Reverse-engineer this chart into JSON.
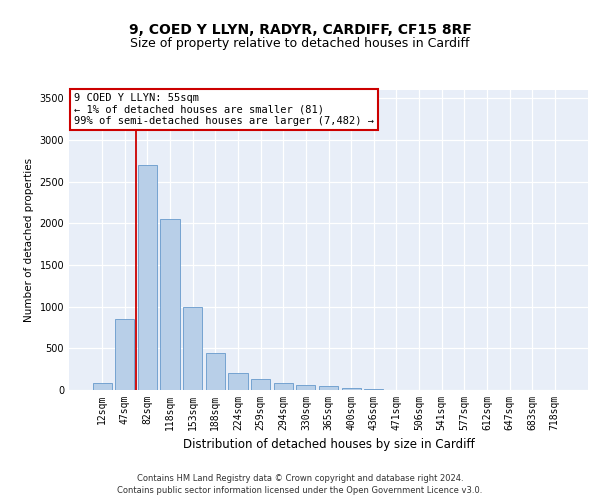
{
  "title1": "9, COED Y LLYN, RADYR, CARDIFF, CF15 8RF",
  "title2": "Size of property relative to detached houses in Cardiff",
  "xlabel": "Distribution of detached houses by size in Cardiff",
  "ylabel": "Number of detached properties",
  "categories": [
    "12sqm",
    "47sqm",
    "82sqm",
    "118sqm",
    "153sqm",
    "188sqm",
    "224sqm",
    "259sqm",
    "294sqm",
    "330sqm",
    "365sqm",
    "400sqm",
    "436sqm",
    "471sqm",
    "506sqm",
    "541sqm",
    "577sqm",
    "612sqm",
    "647sqm",
    "683sqm",
    "718sqm"
  ],
  "values": [
    80,
    850,
    2700,
    2050,
    1000,
    450,
    200,
    130,
    80,
    60,
    50,
    30,
    10,
    5,
    3,
    2,
    1,
    0,
    0,
    0,
    0
  ],
  "bar_color": "#b8cfe8",
  "bar_edge_color": "#6699cc",
  "red_line_color": "#cc0000",
  "red_line_x": 1.5,
  "ylim": [
    0,
    3600
  ],
  "yticks": [
    0,
    500,
    1000,
    1500,
    2000,
    2500,
    3000,
    3500
  ],
  "annotation_text": "9 COED Y LLYN: 55sqm\n← 1% of detached houses are smaller (81)\n99% of semi-detached houses are larger (7,482) →",
  "annotation_box_facecolor": "#ffffff",
  "annotation_box_edgecolor": "#cc0000",
  "plot_bg_color": "#e8eef8",
  "fig_bg_color": "#ffffff",
  "title1_fontsize": 10,
  "title2_fontsize": 9,
  "xlabel_fontsize": 8.5,
  "ylabel_fontsize": 7.5,
  "tick_fontsize": 7,
  "annotation_fontsize": 7.5,
  "footer_fontsize": 6,
  "footer_text": "Contains HM Land Registry data © Crown copyright and database right 2024.\nContains public sector information licensed under the Open Government Licence v3.0."
}
